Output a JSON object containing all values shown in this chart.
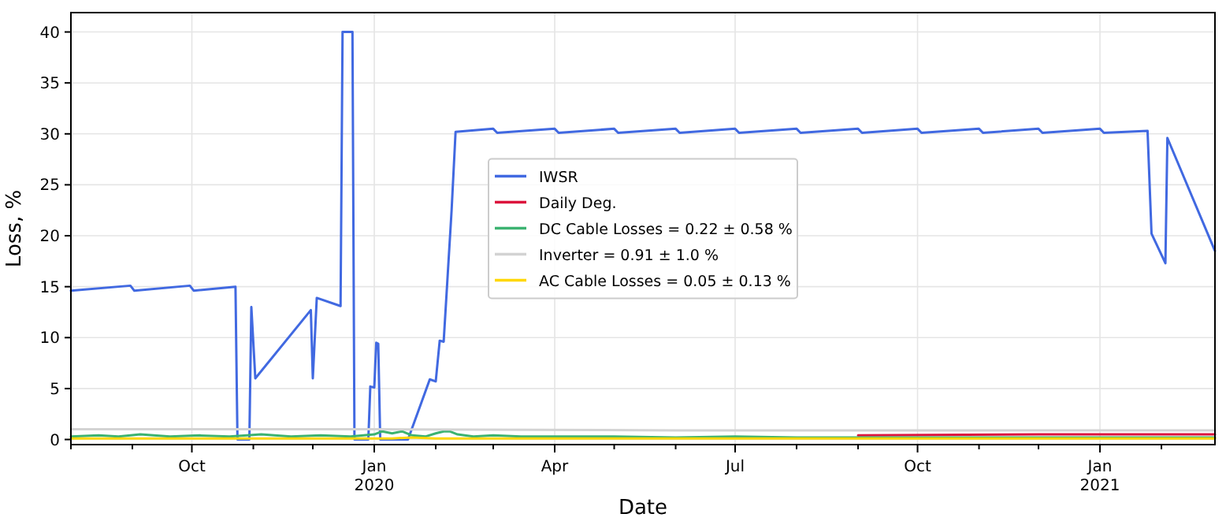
{
  "chart_data": {
    "type": "line",
    "xlabel": "Date",
    "ylabel": "Loss, %",
    "xlim": [
      "2019-08-01",
      "2021-02-28"
    ],
    "ylim": [
      -0.5,
      41.9
    ],
    "xticks": [
      {
        "value": "2019-08-01",
        "label": null
      },
      {
        "value": "2019-09-01",
        "label": null
      },
      {
        "value": "2019-10-01",
        "label": "Oct"
      },
      {
        "value": "2019-11-01",
        "label": null
      },
      {
        "value": "2019-12-01",
        "label": null
      },
      {
        "value": "2020-01-01",
        "label": "Jan\n2020"
      },
      {
        "value": "2020-02-01",
        "label": null
      },
      {
        "value": "2020-03-01",
        "label": null
      },
      {
        "value": "2020-04-01",
        "label": "Apr"
      },
      {
        "value": "2020-05-01",
        "label": null
      },
      {
        "value": "2020-06-01",
        "label": null
      },
      {
        "value": "2020-07-01",
        "label": "Jul"
      },
      {
        "value": "2020-08-01",
        "label": null
      },
      {
        "value": "2020-09-01",
        "label": null
      },
      {
        "value": "2020-10-01",
        "label": "Oct"
      },
      {
        "value": "2020-11-01",
        "label": null
      },
      {
        "value": "2020-12-01",
        "label": null
      },
      {
        "value": "2021-01-01",
        "label": "Jan\n2021"
      },
      {
        "value": "2021-02-01",
        "label": null
      }
    ],
    "yticks": [
      0,
      5,
      10,
      15,
      20,
      25,
      30,
      35,
      40
    ],
    "grid": true,
    "legend": "center",
    "marker": "none",
    "line_style": "solid",
    "series": [
      {
        "name": "IWSR",
        "color": "#4169e1",
        "x": [
          "2019-08-01",
          "2019-08-31",
          "2019-09-02",
          "2019-09-30",
          "2019-10-02",
          "2019-10-23",
          "2019-10-24",
          "2019-10-30",
          "2019-10-31",
          "2019-11-02",
          "2019-11-30",
          "2019-12-01",
          "2019-12-03",
          "2019-12-15",
          "2019-12-16",
          "2019-12-21",
          "2019-12-22",
          "2019-12-29",
          "2019-12-30",
          "2020-01-01",
          "2020-01-02",
          "2020-01-03",
          "2020-01-04",
          "2020-01-18",
          "2020-01-29",
          "2020-02-01",
          "2020-02-03",
          "2020-02-05",
          "2020-02-09",
          "2020-02-11",
          "2020-03-01",
          "2020-03-03",
          "2020-04-01",
          "2020-04-03",
          "2020-05-01",
          "2020-05-03",
          "2020-06-01",
          "2020-06-03",
          "2020-07-01",
          "2020-07-03",
          "2020-08-01",
          "2020-08-03",
          "2020-09-01",
          "2020-09-03",
          "2020-10-01",
          "2020-10-03",
          "2020-11-01",
          "2020-11-03",
          "2020-12-01",
          "2020-12-03",
          "2021-01-01",
          "2021-01-03",
          "2021-01-25",
          "2021-01-27",
          "2021-02-03",
          "2021-02-04",
          "2021-02-28"
        ],
        "values": [
          14.6,
          15.1,
          14.6,
          15.1,
          14.6,
          15.0,
          0,
          0,
          13.0,
          6.0,
          12.7,
          6.0,
          13.9,
          13.1,
          40,
          40,
          0,
          0,
          5.2,
          5.1,
          9.5,
          9.4,
          0,
          0,
          5.9,
          5.7,
          9.7,
          9.6,
          22.5,
          30.2,
          30.5,
          30.1,
          30.5,
          30.1,
          30.5,
          30.1,
          30.5,
          30.1,
          30.5,
          30.1,
          30.5,
          30.1,
          30.5,
          30.1,
          30.5,
          30.1,
          30.5,
          30.1,
          30.5,
          30.1,
          30.5,
          30.1,
          30.3,
          20.2,
          17.3,
          29.6,
          18.5
        ]
      },
      {
        "name": "Daily Deg.",
        "color": "#dc143c",
        "x": [
          "2020-09-01",
          "2020-12-01",
          "2021-02-28"
        ],
        "values": [
          0.4,
          0.5,
          0.5
        ]
      },
      {
        "name": "DC Cable Losses = 0.22 ± 0.58 %",
        "color": "#3cb371",
        "x": [
          "2019-08-01",
          "2019-08-15",
          "2019-08-25",
          "2019-09-05",
          "2019-09-20",
          "2019-10-05",
          "2019-10-20",
          "2019-11-05",
          "2019-11-20",
          "2019-12-05",
          "2019-12-20",
          "2020-01-01",
          "2020-01-05",
          "2020-01-10",
          "2020-01-15",
          "2020-01-20",
          "2020-01-27",
          "2020-02-01",
          "2020-02-05",
          "2020-02-08",
          "2020-02-12",
          "2020-02-20",
          "2020-03-01",
          "2020-03-15",
          "2020-04-01",
          "2020-05-01",
          "2020-06-01",
          "2020-07-01",
          "2020-08-01",
          "2020-09-01",
          "2020-10-01",
          "2020-11-01",
          "2020-12-01",
          "2021-01-01",
          "2021-02-01",
          "2021-02-28"
        ],
        "values": [
          0.3,
          0.4,
          0.3,
          0.5,
          0.3,
          0.4,
          0.3,
          0.5,
          0.3,
          0.4,
          0.3,
          0.5,
          0.8,
          0.6,
          0.8,
          0.4,
          0.3,
          0.6,
          0.8,
          0.8,
          0.5,
          0.3,
          0.4,
          0.3,
          0.3,
          0.3,
          0.2,
          0.3,
          0.2,
          0.2,
          0.2,
          0.2,
          0.2,
          0.2,
          0.2,
          0.2
        ]
      },
      {
        "name": "Inverter = 0.91 ± 1.0 %",
        "color": "#d3d3d3",
        "x": [
          "2019-08-01",
          "2019-09-30",
          "2020-01-01",
          "2020-06-01",
          "2020-10-01",
          "2021-02-28"
        ],
        "values": [
          1.0,
          1.0,
          1.0,
          0.9,
          0.9,
          0.9
        ]
      },
      {
        "name": "AC Cable Losses = 0.05 ± 0.13 %",
        "color": "#ffd700",
        "x": [
          "2019-08-01",
          "2020-01-10",
          "2020-01-20",
          "2020-02-01",
          "2021-02-28"
        ],
        "values": [
          0.1,
          0.1,
          0.2,
          0.1,
          0.1
        ]
      }
    ]
  }
}
